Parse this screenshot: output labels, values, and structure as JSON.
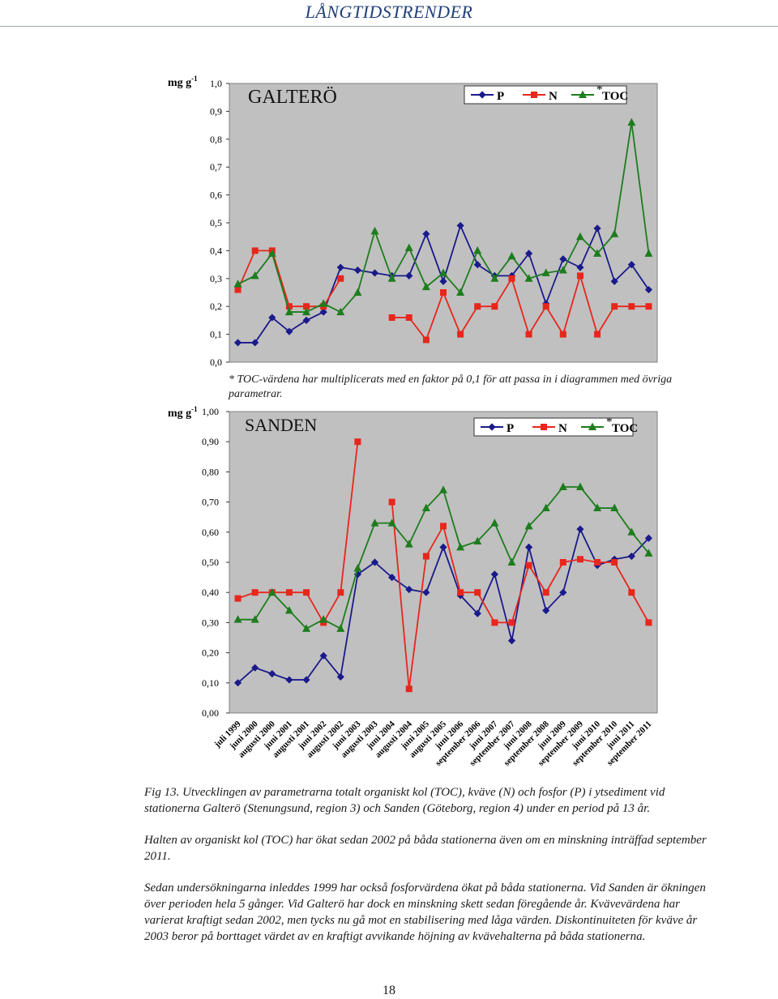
{
  "page": {
    "header_title": "LÅNGTIDSTRENDER",
    "page_number": "18"
  },
  "note": "* TOC-värdena har multiplicerats med en faktor på 0,1 för att passa in i diagrammen med övriga parametrar.",
  "caption": {
    "fig": "Fig 13. Utvecklingen av parametrarna totalt organiskt kol (TOC), kväve (N) och fosfor (P) i ytsediment vid stationerna Galterö (Stenungsund, region 3) och Sanden (Göteborg, region 4) under en period på 13  år.",
    "p2": "Halten av organiskt kol (TOC) har ökat sedan 2002 på båda stationerna även om en minskning inträffad september 2011.",
    "p3": "Sedan undersökningarna inleddes 1999 har också fosforvärdena ökat på båda stationerna. Vid Sanden är ökningen över perioden hela 5 gånger. Vid Galterö har dock en minskning skett sedan föregående år. Kvävevärdena har varierat kraftigt sedan 2002, men tycks nu gå mot en stabilisering med låga värden. Diskontinuiteten för kväve år 2003 beror på borttaget värdet av en kraftigt avvikande höjning av kvävehalterna på båda stationerna."
  },
  "colors": {
    "P": "#1a1a8c",
    "N": "#e8261b",
    "TOC": "#1d7d1d",
    "plot_bg": "#c0c0c0"
  },
  "chart_data": [
    {
      "type": "line",
      "title": "GALTERÖ",
      "ylabel": "mg g",
      "ylabel_sup": "-1",
      "ylim": [
        0,
        1.0
      ],
      "yticks": [
        "0,0",
        "0,1",
        "0,2",
        "0,3",
        "0,4",
        "0,5",
        "0,6",
        "0,7",
        "0,8",
        "0,9",
        "1,0"
      ],
      "legend": {
        "placement": "top-right",
        "labels": [
          "P",
          "N",
          "TOC"
        ],
        "toc_marker": "*"
      },
      "categories": [
        "juli 1999",
        "juni 2000",
        "augusti 2000",
        "juni 2001",
        "augusti 2001",
        "juni 2002",
        "augusti 2002",
        "juni 2003",
        "augusti 2003",
        "juni 2004",
        "augusti 2004",
        "juni 2005",
        "augusti 2005",
        "juni 2006",
        "september 2006",
        "juni 2007",
        "september 2007",
        "juni 2008",
        "september 2008",
        "juni 2009",
        "september 2009",
        "juni 2010",
        "september 2010",
        "juni 2011",
        "september 2011"
      ],
      "series": [
        {
          "name": "P",
          "marker": "diamond",
          "values": [
            0.07,
            0.07,
            0.16,
            0.11,
            0.15,
            0.18,
            0.34,
            0.33,
            0.32,
            0.31,
            0.31,
            0.46,
            0.29,
            0.49,
            0.35,
            0.31,
            0.31,
            0.39,
            0.21,
            0.37,
            0.34,
            0.48,
            0.29,
            0.35,
            0.26
          ]
        },
        {
          "name": "N",
          "marker": "square",
          "values": [
            0.26,
            0.4,
            0.4,
            0.2,
            0.2,
            0.2,
            0.3,
            null,
            null,
            0.16,
            0.16,
            0.08,
            0.25,
            0.1,
            0.2,
            0.2,
            0.3,
            0.1,
            0.2,
            0.1,
            0.31,
            0.1,
            0.2,
            0.2,
            0.2
          ]
        },
        {
          "name": "TOC",
          "marker": "triangle",
          "values": [
            0.28,
            0.31,
            0.39,
            0.18,
            0.18,
            0.21,
            0.18,
            0.25,
            0.47,
            0.3,
            0.41,
            0.27,
            0.32,
            0.25,
            0.4,
            0.3,
            0.38,
            0.3,
            0.32,
            0.33,
            0.45,
            0.39,
            0.46,
            0.86,
            0.39
          ]
        }
      ]
    },
    {
      "type": "line",
      "title": "SANDEN",
      "ylabel": "mg g",
      "ylabel_sup": "-1",
      "ylim": [
        0,
        1.0
      ],
      "yticks": [
        "0,00",
        "0,10",
        "0,20",
        "0,30",
        "0,40",
        "0,50",
        "0,60",
        "0,70",
        "0,80",
        "0,90",
        "1,00"
      ],
      "legend": {
        "placement": "top-right",
        "labels": [
          "P",
          "N",
          "TOC"
        ],
        "toc_marker": "*"
      },
      "categories": [
        "juli 1999",
        "juni 2000",
        "augusti 2000",
        "juni 2001",
        "augusti 2001",
        "juni 2002",
        "augusti 2002",
        "juni 2003",
        "augusti 2003",
        "juni 2004",
        "augusti 2004",
        "juni 2005",
        "augusti 2005",
        "juni 2006",
        "september 2006",
        "juni 2007",
        "september 2007",
        "juni 2008",
        "september 2008",
        "juni 2009",
        "september 2009",
        "juni 2010",
        "september 2010",
        "juni 2011",
        "september 2011"
      ],
      "series": [
        {
          "name": "P",
          "marker": "diamond",
          "values": [
            0.1,
            0.15,
            0.13,
            0.11,
            0.11,
            0.19,
            0.12,
            0.46,
            0.5,
            0.45,
            0.41,
            0.4,
            0.55,
            0.39,
            0.33,
            0.46,
            0.24,
            0.55,
            0.34,
            0.4,
            0.61,
            0.49,
            0.51,
            0.52,
            0.58
          ]
        },
        {
          "name": "N",
          "marker": "square",
          "values": [
            0.38,
            0.4,
            0.4,
            0.4,
            0.4,
            0.3,
            0.4,
            0.9,
            null,
            0.7,
            0.08,
            0.52,
            0.62,
            0.4,
            0.4,
            0.3,
            0.3,
            0.49,
            0.4,
            0.5,
            0.51,
            0.5,
            0.5,
            0.4,
            0.3
          ]
        },
        {
          "name": "TOC",
          "marker": "triangle",
          "values": [
            0.31,
            0.31,
            0.4,
            0.34,
            0.28,
            0.31,
            0.28,
            0.48,
            0.63,
            0.63,
            0.56,
            0.68,
            0.74,
            0.55,
            0.57,
            0.63,
            0.5,
            0.62,
            0.68,
            0.75,
            0.75,
            0.68,
            0.68,
            0.6,
            0.53
          ]
        }
      ]
    }
  ]
}
